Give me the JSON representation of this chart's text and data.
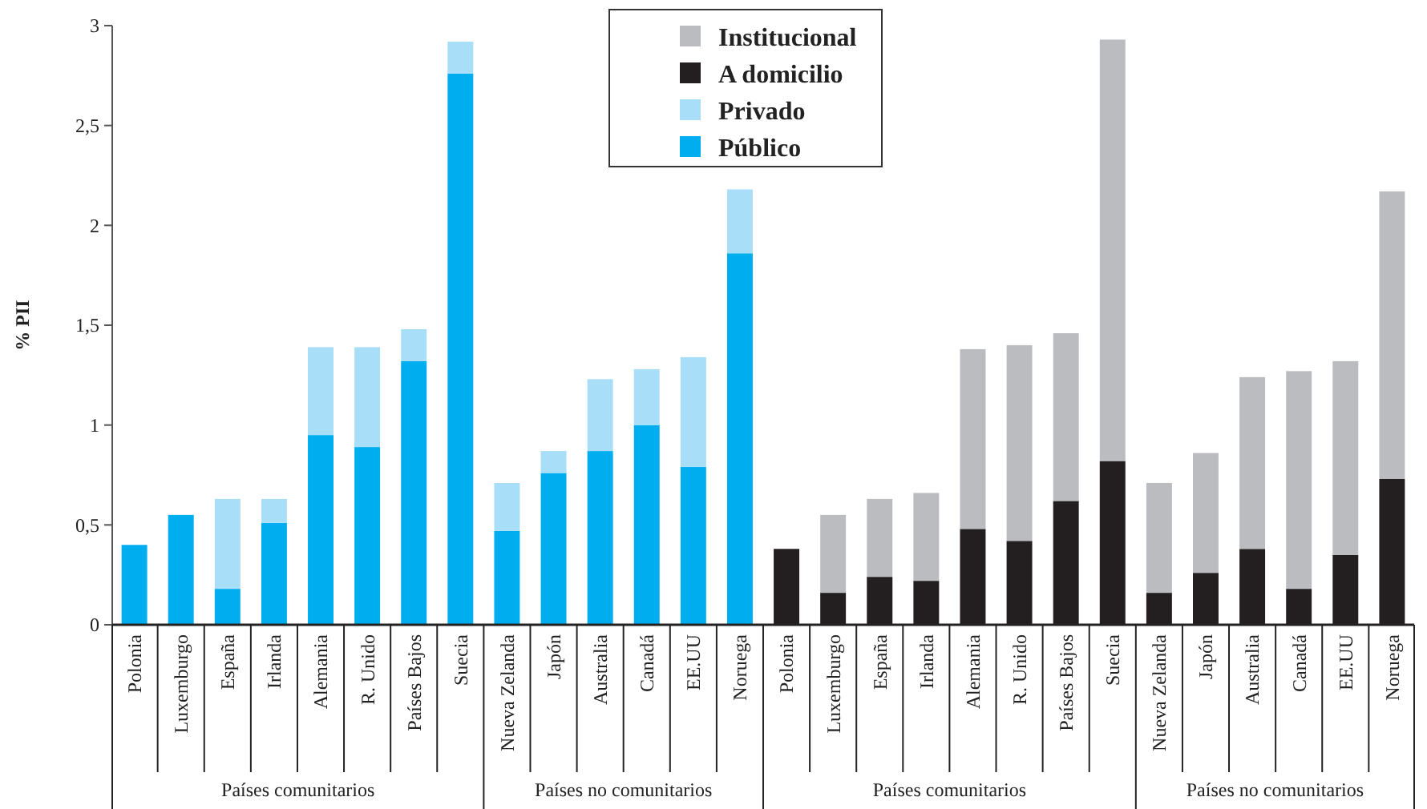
{
  "chart_data": {
    "type": "bar",
    "stacked": true,
    "ylabel": "% PII",
    "categories": [
      "Polonia",
      "Luxemburgo",
      "España",
      "Irlanda",
      "Alemania",
      "R. Unido",
      "Países Bajos",
      "Suecia",
      "Nueva Zelanda",
      "Japón",
      "Australia",
      "Canadá",
      "EE.UU",
      "Noruega",
      "Polonia",
      "Luxemburgo",
      "España",
      "Irlanda",
      "Alemania",
      "R. Unido",
      "Países Bajos",
      "Suecia",
      "Nueva Zelanda",
      "Japón",
      "Australia",
      "Canadá",
      "EE.UU",
      "Noruega"
    ],
    "series": [
      {
        "name": "Público",
        "color": "#00aeef",
        "values": [
          0.4,
          0.55,
          0.18,
          0.51,
          0.95,
          0.89,
          1.32,
          2.76,
          0.47,
          0.76,
          0.87,
          1.0,
          0.79,
          1.86,
          null,
          null,
          null,
          null,
          null,
          null,
          null,
          null,
          null,
          null,
          null,
          null,
          null,
          null
        ]
      },
      {
        "name": "Privado",
        "color": "#a8def7",
        "values": [
          0,
          0,
          0.45,
          0.12,
          0.44,
          0.5,
          0.16,
          0.16,
          0.24,
          0.11,
          0.36,
          0.28,
          0.55,
          0.32,
          null,
          null,
          null,
          null,
          null,
          null,
          null,
          null,
          null,
          null,
          null,
          null,
          null,
          null
        ]
      },
      {
        "name": "A domicilio",
        "color": "#231f20",
        "values": [
          null,
          null,
          null,
          null,
          null,
          null,
          null,
          null,
          null,
          null,
          null,
          null,
          null,
          null,
          0.38,
          0.16,
          0.24,
          0.22,
          0.48,
          0.42,
          0.62,
          0.82,
          0.16,
          0.26,
          0.38,
          0.18,
          0.35,
          0.73
        ]
      },
      {
        "name": "Institucional",
        "color": "#bbbcc0",
        "values": [
          null,
          null,
          null,
          null,
          null,
          null,
          null,
          null,
          null,
          null,
          null,
          null,
          null,
          null,
          0,
          0.39,
          0.39,
          0.44,
          0.9,
          0.98,
          0.84,
          2.11,
          0.55,
          0.6,
          0.86,
          1.09,
          0.97,
          1.44
        ]
      }
    ],
    "ylim": [
      0,
      3
    ],
    "yticks": [
      0,
      {
        "value": 0.5,
        "label": "0,5"
      },
      1,
      {
        "value": 1.5,
        "label": "1,5"
      },
      2,
      {
        "value": 2.5,
        "label": "2,5"
      },
      3
    ],
    "annotations": [
      "Países comunitarios",
      "Países no comunitarios",
      "Países comunitarios",
      "Países no comunitarios"
    ],
    "legend": "top",
    "grid": false
  }
}
